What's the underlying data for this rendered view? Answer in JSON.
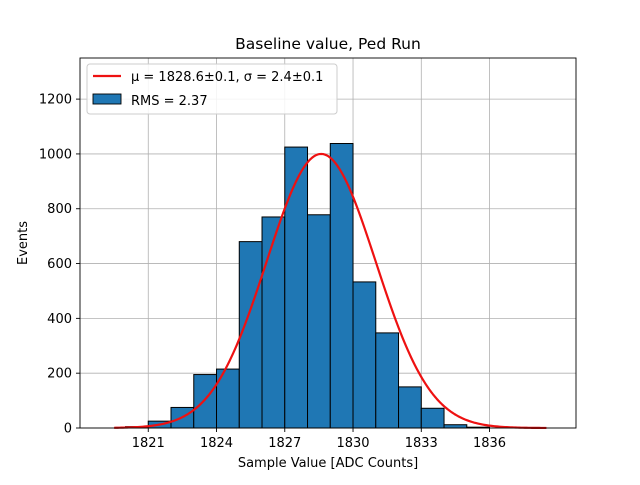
{
  "chart_data": {
    "type": "bar",
    "title": "Baseline value, Ped Run",
    "xlabel": "Sample Value [ADC Counts]",
    "ylabel": "Events",
    "xlim": [
      1818,
      1839.8
    ],
    "ylim": [
      0,
      1350
    ],
    "grid": true,
    "legend_position": "top-left",
    "xticks": [
      1821,
      1824,
      1827,
      1830,
      1833,
      1836
    ],
    "yticks": [
      0,
      200,
      400,
      600,
      800,
      1000,
      1200
    ],
    "bin_width": 1,
    "bins": [
      {
        "left": 1820,
        "value": 5
      },
      {
        "left": 1821,
        "value": 25
      },
      {
        "left": 1822,
        "value": 75
      },
      {
        "left": 1823,
        "value": 195
      },
      {
        "left": 1824,
        "value": 215
      },
      {
        "left": 1825,
        "value": 680
      },
      {
        "left": 1826,
        "value": 770
      },
      {
        "left": 1827,
        "value": 1025
      },
      {
        "left": 1828,
        "value": 778
      },
      {
        "left": 1829,
        "value": 1038
      },
      {
        "left": 1830,
        "value": 533
      },
      {
        "left": 1831,
        "value": 347
      },
      {
        "left": 1832,
        "value": 150
      },
      {
        "left": 1833,
        "value": 72
      },
      {
        "left": 1834,
        "value": 12
      },
      {
        "left": 1835,
        "value": 3
      }
    ],
    "fit": {
      "type": "gaussian",
      "mu": 1828.6,
      "sigma": 2.4,
      "amplitude": 1000,
      "x_range": [
        1819.5,
        1838.5
      ]
    },
    "legend": [
      {
        "kind": "line",
        "color": "#ee1111",
        "label": "μ = 1828.6±0.1, σ = 2.4±0.1"
      },
      {
        "kind": "patch",
        "color": "#1f77b4",
        "label": "RMS = 2.37"
      }
    ],
    "colors": {
      "bars": "#1f77b4",
      "bar_edge": "#000000",
      "fit_line": "#ee1111",
      "grid": "#b0b0b0"
    }
  }
}
